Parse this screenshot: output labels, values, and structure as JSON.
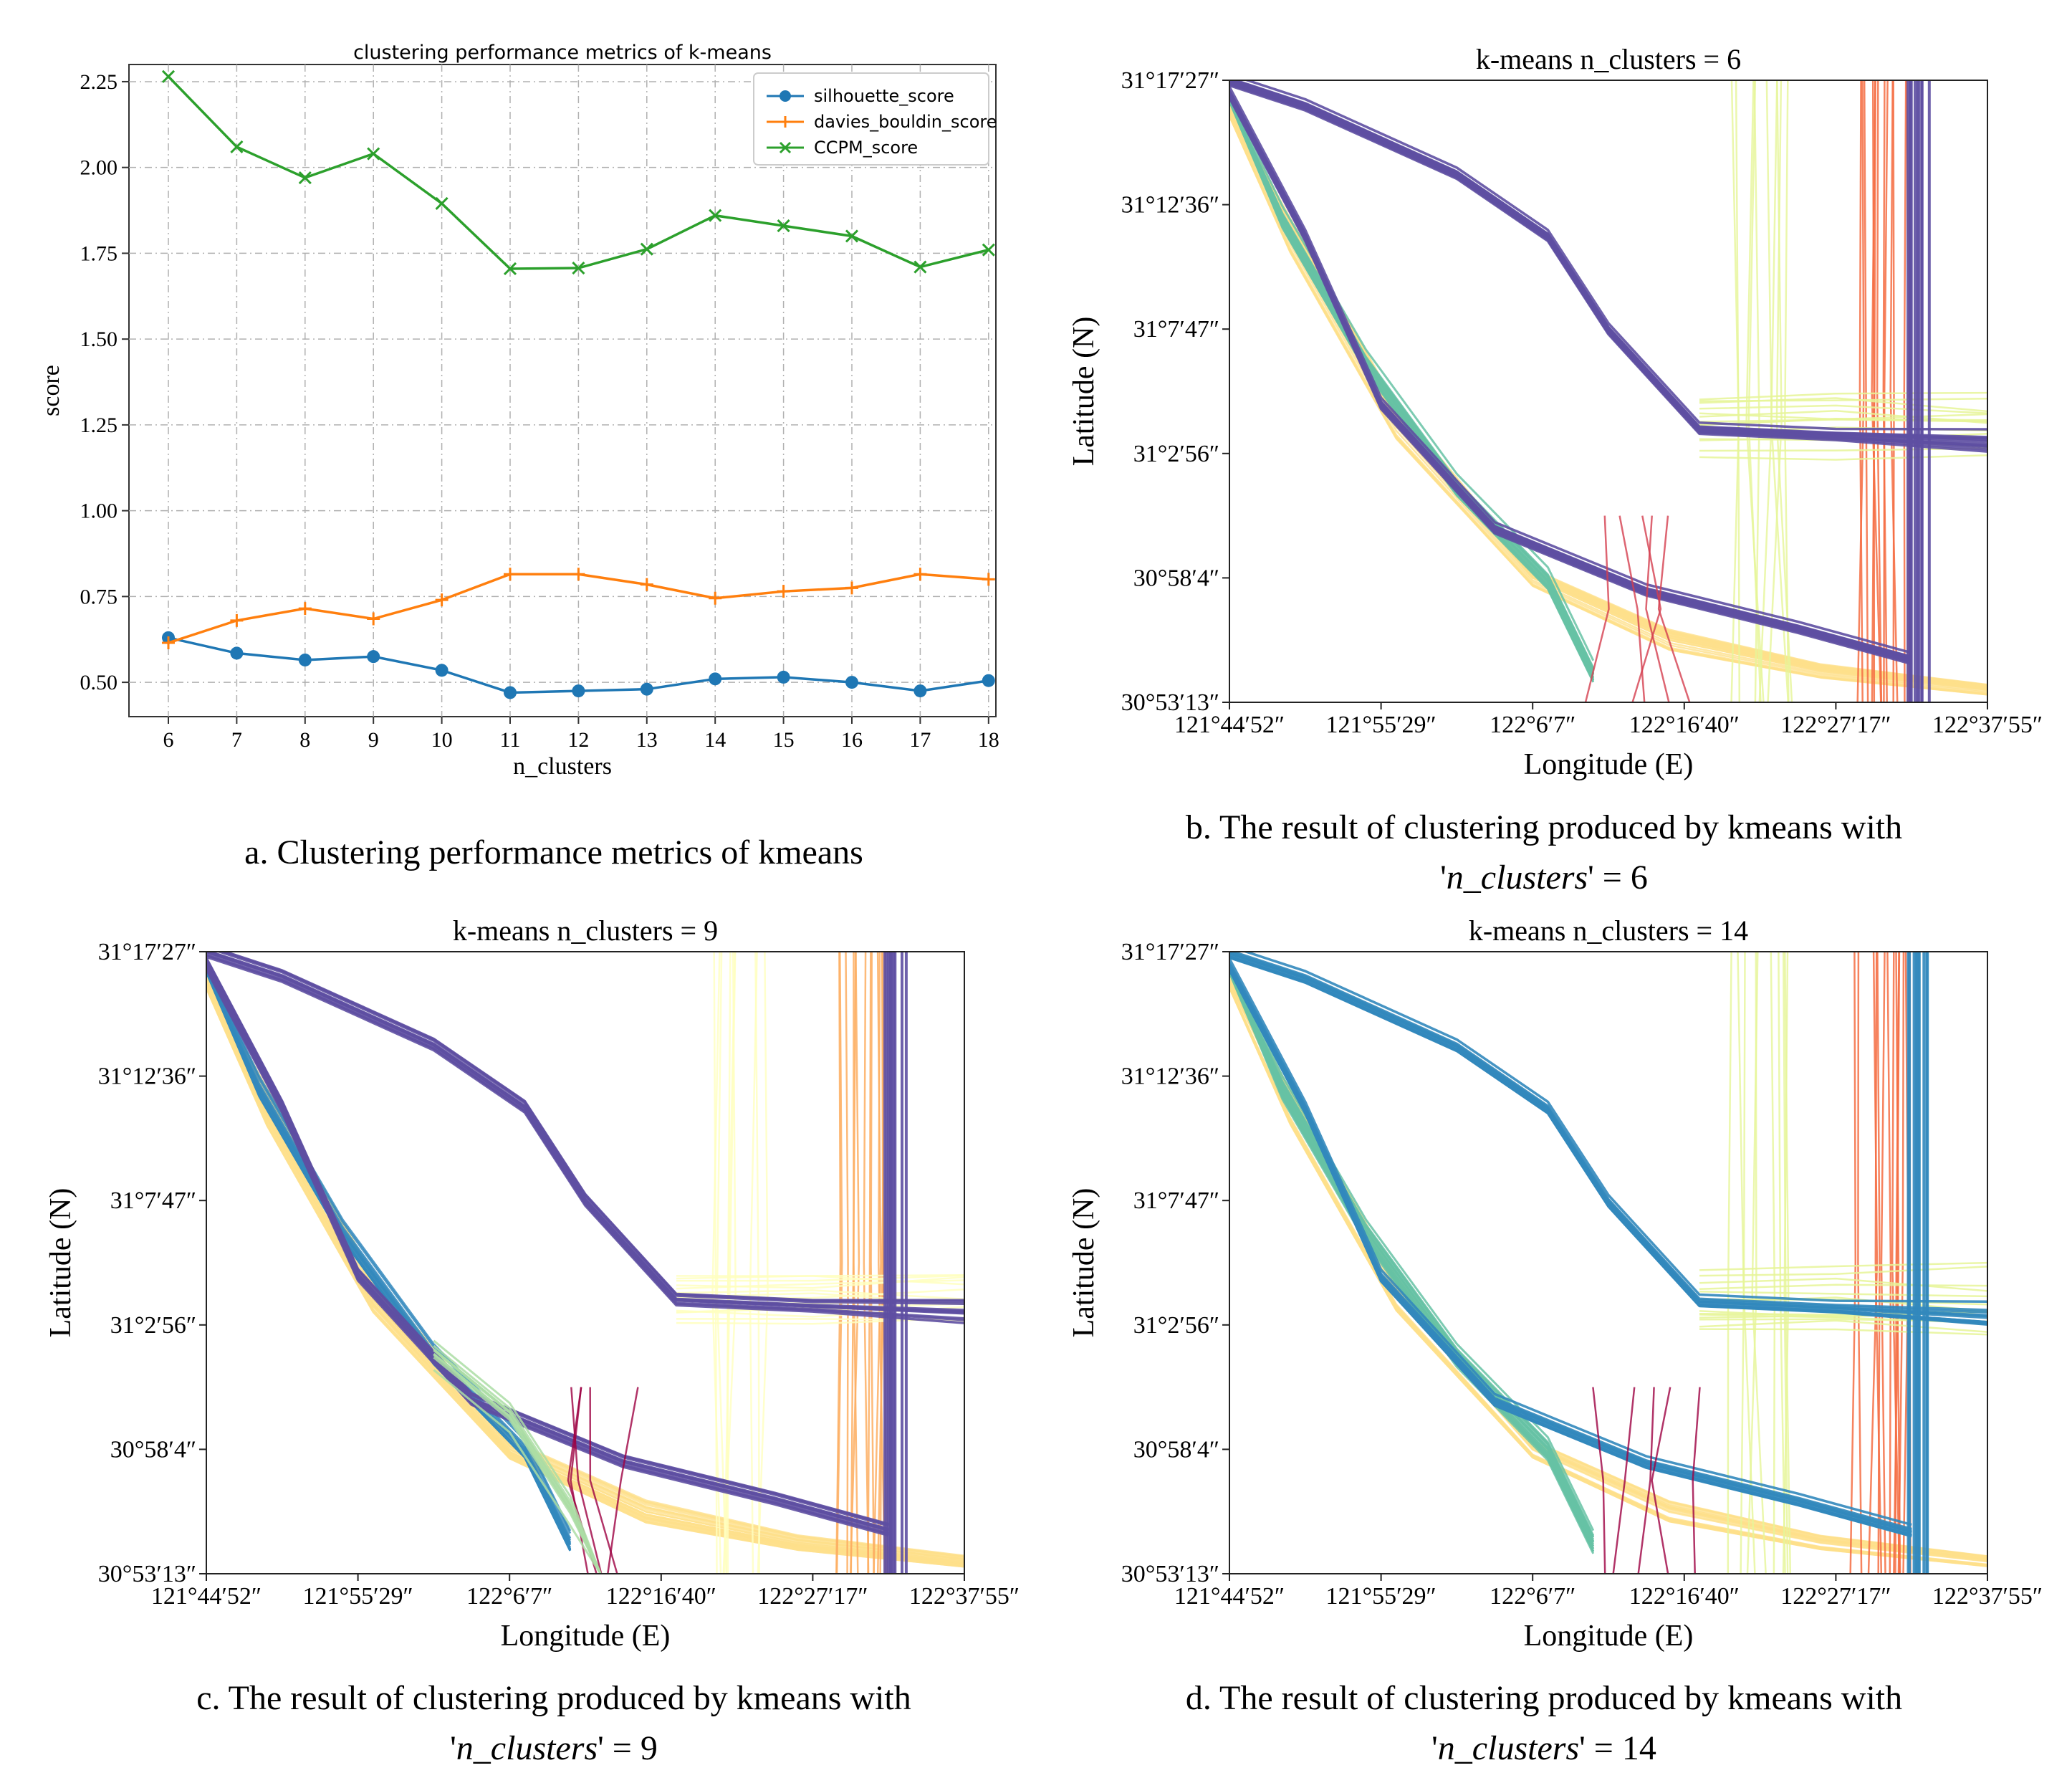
{
  "chart_data": [
    {
      "type": "line",
      "title": "clustering performance metrics of k-means",
      "xlabel": "n_clusters",
      "ylabel": "score",
      "x": [
        6,
        7,
        8,
        9,
        10,
        11,
        12,
        13,
        14,
        15,
        16,
        17,
        18
      ],
      "ylim": [
        0.4,
        2.3
      ],
      "yticks": [
        "0.50",
        "0.75",
        "1.00",
        "1.25",
        "1.50",
        "1.75",
        "2.00",
        "2.25"
      ],
      "grid": true,
      "legend_position": "top-right",
      "series": [
        {
          "name": "silhouette_score",
          "color": "#1f77b4",
          "marker": "circle",
          "values": [
            0.63,
            0.585,
            0.565,
            0.575,
            0.535,
            0.47,
            0.475,
            0.48,
            0.51,
            0.515,
            0.5,
            0.475,
            0.505
          ]
        },
        {
          "name": "davies_bouldin_score",
          "color": "#ff7f0e",
          "marker": "plus",
          "values": [
            0.615,
            0.68,
            0.715,
            0.685,
            0.74,
            0.815,
            0.815,
            0.785,
            0.745,
            0.765,
            0.775,
            0.815,
            0.8
          ]
        },
        {
          "name": "CCPM_score",
          "color": "#2ca02c",
          "marker": "x",
          "values": [
            2.265,
            2.06,
            1.97,
            2.04,
            1.895,
            1.705,
            1.707,
            1.762,
            1.86,
            1.83,
            1.8,
            1.71,
            1.76
          ]
        }
      ]
    },
    {
      "type": "map",
      "title": "k-means n_clusters = 6",
      "xlabel": "Longitude (E)",
      "ylabel": "Latitude (N)",
      "xticks": [
        "121°44′52″",
        "121°55′29″",
        "122°6′7″",
        "122°16′40″",
        "122°27′17″",
        "122°37′55″"
      ],
      "yticks": [
        "31°17′27″",
        "31°12′36″",
        "31°7′47″",
        "31°2′56″",
        "30°58′4″",
        "30°53′13″"
      ]
    },
    {
      "type": "map",
      "title": "k-means n_clusters = 9",
      "xlabel": "Longitude (E)",
      "ylabel": "Latitude (N)",
      "xticks": [
        "121°44′52″",
        "121°55′29″",
        "122°6′7″",
        "122°16′40″",
        "122°27′17″",
        "122°37′55″"
      ],
      "yticks": [
        "31°17′27″",
        "31°12′36″",
        "31°7′47″",
        "31°2′56″",
        "30°58′4″",
        "30°53′13″"
      ]
    },
    {
      "type": "map",
      "title": "k-means n_clusters = 14",
      "xlabel": "Longitude (E)",
      "ylabel": "Latitude (N)",
      "xticks": [
        "121°44′52″",
        "121°55′29″",
        "122°6′7″",
        "122°16′40″",
        "122°27′17″",
        "122°37′55″"
      ],
      "yticks": [
        "31°17′27″",
        "31°12′36″",
        "31°7′47″",
        "31°2′56″",
        "30°58′4″",
        "30°53′13″"
      ]
    }
  ],
  "captions": {
    "a": "a. Clustering performance metrics of kmeans",
    "b_line1": "b. The result of clustering produced by kmeans with",
    "b_line2_pre": "'",
    "b_line2_it": "n_clusters",
    "b_line2_post": "' = 6",
    "c_line1": "c. The result of clustering produced by kmeans with",
    "c_line2_pre": "'",
    "c_line2_it": "n_clusters",
    "c_line2_post": "' = 9",
    "d_line1": "d. The result of clustering produced by kmeans with",
    "d_line2_pre": "'",
    "d_line2_it": "n_clusters",
    "d_line2_post": "' = 14"
  },
  "palettes": {
    "b": {
      "primary": "#5e4fa2",
      "secondary": "#66c2a5",
      "sand": "#fee08b",
      "lime": "#e6f598",
      "red": "#f46d43",
      "dark": "#d53e4f"
    },
    "c": {
      "primary": "#5e4fa2",
      "secondary": "#3288bd",
      "sand": "#fee08b",
      "lime": "#ffffbf",
      "red": "#fdae61",
      "dark": "#9e0142",
      "mint": "#abdda4"
    },
    "d": {
      "primary": "#3288bd",
      "secondary": "#66c2a5",
      "sand": "#fee08b",
      "lime": "#e6f598",
      "red": "#f46d43",
      "dark": "#9e0142"
    }
  }
}
